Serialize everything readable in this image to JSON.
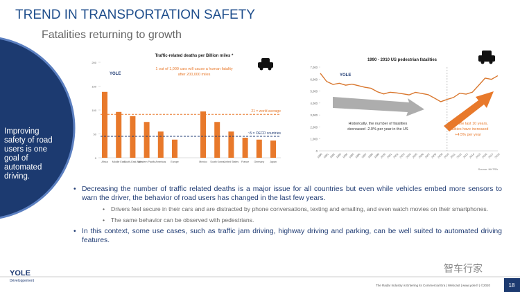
{
  "header": {
    "title": "TREND IN TRANSPORTATION SAFETY",
    "subtitle": "Fatalities returning to growth"
  },
  "sidebar": {
    "lines": [
      "Improving",
      "safety of road",
      "users is one",
      "goal of",
      "automated",
      "driving."
    ]
  },
  "chart_data": [
    {
      "type": "bar",
      "title": "Traffic-related deaths per Billion miles *",
      "color": "#e8792b",
      "categories": [
        "Africa",
        "Middle East",
        "South-East Asia",
        "Western Pacific",
        "Americas",
        "Europe",
        "Mexico",
        "South Korea",
        "United States",
        "France",
        "Germany",
        "Japan"
      ],
      "values": [
        138,
        96,
        87,
        75,
        55,
        38,
        97,
        75,
        55,
        42,
        38,
        36
      ],
      "ylim": [
        0,
        200
      ],
      "yticks": [
        0,
        50,
        100,
        150,
        200
      ],
      "annotations": [
        {
          "lines": [
            "1 out of 1,000 cars will cause a human fatality",
            "after 200,000 miles"
          ]
        }
      ],
      "reference_lines": [
        {
          "label": "21 = world average",
          "value": 91,
          "color": "#e8792b"
        },
        {
          "label": "~5 = OECD countries",
          "value": 45,
          "color": "#1f3b73"
        }
      ]
    },
    {
      "type": "line",
      "title": "1990 - 2010 US pedestrian fatalities",
      "x": [
        1990,
        1991,
        1992,
        1993,
        1994,
        1995,
        1996,
        1997,
        1998,
        1999,
        2000,
        2001,
        2002,
        2003,
        2004,
        2005,
        2006,
        2007,
        2008,
        2009,
        2010,
        2011,
        2012,
        2013,
        2014,
        2015,
        2016,
        2017,
        2018
      ],
      "series": [
        {
          "name": "US pedestrian fatalities",
          "color": "#d9772e",
          "values": [
            6480,
            5800,
            5550,
            5650,
            5490,
            5580,
            5450,
            5320,
            5230,
            4940,
            4760,
            4900,
            4850,
            4770,
            4680,
            4890,
            4800,
            4700,
            4410,
            4110,
            4300,
            4460,
            4820,
            4740,
            4910,
            5490,
            6080,
            5980,
            6280
          ]
        }
      ],
      "xlim": [
        1990,
        2018
      ],
      "ylim": [
        0,
        7000
      ],
      "yticks": [
        {
          "value": 0,
          "label": "0"
        },
        {
          "value": 1000,
          "label": "1,000"
        },
        {
          "value": 2000,
          "label": "2,000"
        },
        {
          "value": 3000,
          "label": "3,000"
        },
        {
          "value": 4000,
          "label": "4,000"
        },
        {
          "value": 5000,
          "label": "5,000"
        },
        {
          "value": 6000,
          "label": "6,000"
        },
        {
          "value": 7000,
          "label": "7,000"
        }
      ],
      "annotations": [
        {
          "lines": [
            "Historically, the number of fatalities",
            "decreased -2.0% per year in the US"
          ]
        },
        {
          "lines": [
            "But in the last 10 years,",
            "fatalities have increased",
            "+4.5% per year"
          ]
        }
      ],
      "source": "Source: NHTSA"
    }
  ],
  "bullets": [
    {
      "text": "Decreasing the number of traffic related deaths is a major issue for all countries but even while vehicles embed more sensors to warn the driver, the behavior of road users has changed in the last few years.",
      "sub": [
        "Drivers feel secure in their cars and are distracted by phone conversations, texting and emailing, and even watch movies on their smartphones.",
        "The same behavior can be observed with pedestrians."
      ]
    },
    {
      "text": "In this context, some use cases, such as traffic jam driving, highway driving and parking, can be well suited to automated driving features.",
      "sub": []
    }
  ],
  "footer": {
    "logo": "YOLE",
    "logo_sub": "Développement",
    "wechat": "智车行家",
    "tagline": "The Radar Industry is Entering its Commercial Era | Webcast | www.yole.fr | ©2020",
    "page": "18"
  }
}
